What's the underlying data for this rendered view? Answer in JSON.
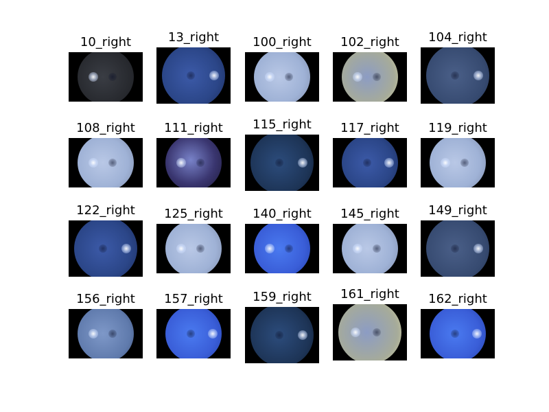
{
  "figure": {
    "images": [
      {
        "label": "10_right",
        "tone": "dim"
      },
      {
        "label": "13_right",
        "tone": "blue"
      },
      {
        "label": "100_right",
        "tone": "pale"
      },
      {
        "label": "102_right",
        "tone": "yellow"
      },
      {
        "label": "104_right",
        "tone": "steel"
      },
      {
        "label": "108_right",
        "tone": "pale"
      },
      {
        "label": "111_right",
        "tone": "purple"
      },
      {
        "label": "115_right",
        "tone": "dark"
      },
      {
        "label": "117_right",
        "tone": "blue"
      },
      {
        "label": "119_right",
        "tone": "pale"
      },
      {
        "label": "122_right",
        "tone": "blue"
      },
      {
        "label": "125_right",
        "tone": "pale"
      },
      {
        "label": "140_right",
        "tone": "bright"
      },
      {
        "label": "145_right",
        "tone": "pale"
      },
      {
        "label": "149_right",
        "tone": "steel"
      },
      {
        "label": "156_right",
        "tone": "mid"
      },
      {
        "label": "157_right",
        "tone": "bright"
      },
      {
        "label": "159_right",
        "tone": "dark"
      },
      {
        "label": "161_right",
        "tone": "yellow"
      },
      {
        "label": "162_right",
        "tone": "bright"
      }
    ]
  }
}
